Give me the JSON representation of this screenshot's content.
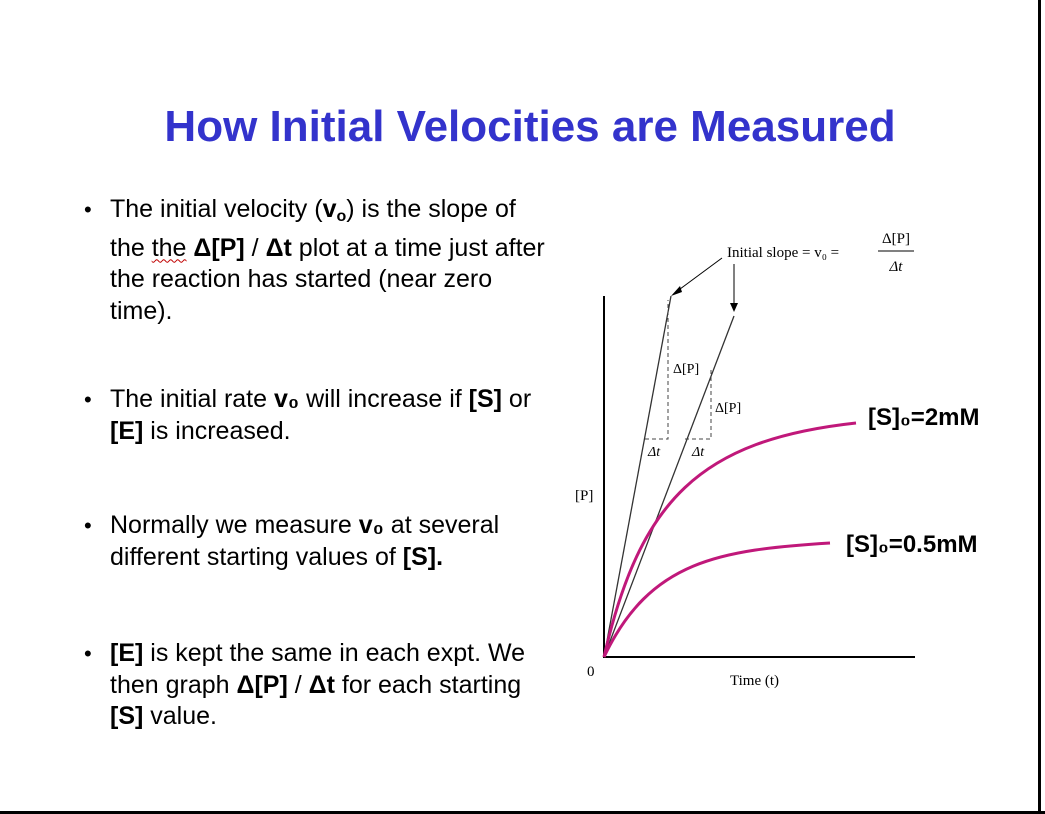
{
  "title": "How Initial Velocities are Measured",
  "bullets": [
    {
      "parts": [
        {
          "t": "The initial velocity ("
        },
        {
          "t": "v",
          "b": true
        },
        {
          "t": "o",
          "b": true,
          "sub": true
        },
        {
          "t": ") is the slope of the "
        },
        {
          "t": "the",
          "wavy": true
        },
        {
          "t": " Δ[P]",
          "b": true
        },
        {
          "t": " / "
        },
        {
          "t": "Δt",
          "b": true
        },
        {
          "t": " plot at a time just after the reaction has started (near zero time)."
        }
      ]
    },
    {
      "parts": [
        {
          "t": "The initial rate "
        },
        {
          "t": "v₀",
          "b": true
        },
        {
          "t": " will increase if "
        },
        {
          "t": "[S]",
          "b": true
        },
        {
          "t": " or "
        },
        {
          "t": "[E]",
          "b": true
        },
        {
          "t": " is increased."
        }
      ]
    },
    {
      "parts": [
        {
          "t": "Normally we measure "
        },
        {
          "t": "v₀",
          "b": true
        },
        {
          "t": " at several different starting values of "
        },
        {
          "t": "[S].",
          "b": true
        }
      ]
    },
    {
      "parts": [
        {
          "t": "[E]",
          "b": true
        },
        {
          "t": " is kept the same in each expt. We then graph "
        },
        {
          "t": "Δ[P]",
          "b": true
        },
        {
          "t": " / "
        },
        {
          "t": "Δt",
          "b": true
        },
        {
          "t": " for each starting "
        },
        {
          "t": "[S]",
          "b": true
        },
        {
          "t": " value."
        }
      ]
    }
  ],
  "diagram": {
    "y_axis_label": "[P]",
    "x_axis_label": "Time (t)",
    "origin_label": "0",
    "slope_label": "Initial slope = v₀ =",
    "fraction_num": "Δ[P]",
    "fraction_den": "Δt",
    "dp_label_1": "Δ[P]",
    "dp_label_2": "Δ[P]",
    "dt_label_1": "Δt",
    "dt_label_2": "Δt",
    "curve_high_label": "[S]₀=2mM",
    "curve_low_label": "[S]₀=0.5mM",
    "curve_color": "#c0187a"
  }
}
